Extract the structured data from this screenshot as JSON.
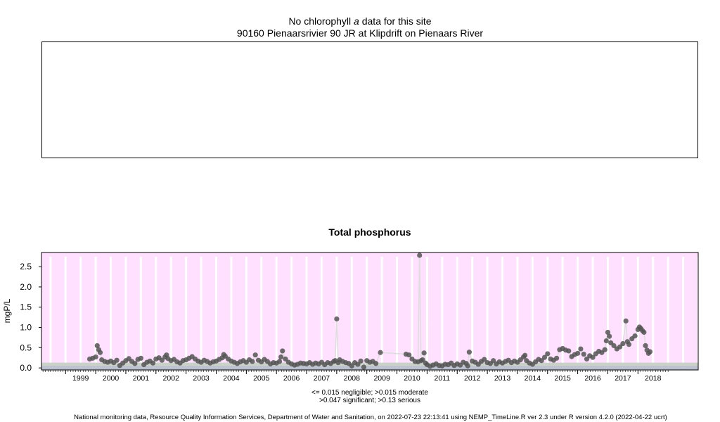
{
  "header": {
    "no_data_prefix": "No chlorophyll",
    "no_data_symbol": "a",
    "no_data_suffix": "data for this site",
    "site_name": "90160 Pienaarsrivier 90 JR at Klipdrift on Pienaars River"
  },
  "chart_data": {
    "type": "scatter",
    "title": "Total phosphorus",
    "xlabel": "",
    "ylabel": "mgP/L",
    "x_ticks": [
      "1999",
      "2000",
      "2001",
      "2002",
      "2003",
      "2004",
      "2005",
      "2006",
      "2007",
      "2008",
      "2009",
      "2010",
      "2011",
      "2012",
      "2013",
      "2014",
      "2015",
      "2016",
      "2017",
      "2018"
    ],
    "xlim": [
      1998.2,
      2020.0
    ],
    "ylim": [
      -0.05,
      2.85
    ],
    "y_ticks": [
      "0.0",
      "0.5",
      "1.0",
      "1.5",
      "2.0",
      "2.5"
    ],
    "grid": "vertical",
    "background_colors": {
      "serious": "#ffe0ff",
      "significant": "#c9d1c9",
      "moderate": "#b9bfcc",
      "negligible": "#999999",
      "grid": "#ffffff",
      "points": "#555555",
      "line": "#dddddd"
    },
    "thresholds": {
      "negligible": 0.015,
      "moderate": 0.015,
      "significant": 0.047,
      "serious": 0.13
    },
    "series": [
      {
        "points": [
          [
            1999.8,
            0.22
          ],
          [
            1999.9,
            0.24
          ],
          [
            2000.0,
            0.27
          ],
          [
            2000.05,
            0.55
          ],
          [
            2000.1,
            0.45
          ],
          [
            2000.15,
            0.38
          ],
          [
            2000.2,
            0.2
          ],
          [
            2000.3,
            0.16
          ],
          [
            2000.4,
            0.14
          ],
          [
            2000.5,
            0.17
          ],
          [
            2000.6,
            0.13
          ],
          [
            2000.7,
            0.19
          ],
          [
            2000.8,
            0.06
          ],
          [
            2000.9,
            0.12
          ],
          [
            2001.0,
            0.18
          ],
          [
            2001.1,
            0.23
          ],
          [
            2001.2,
            0.16
          ],
          [
            2001.3,
            0.11
          ],
          [
            2001.4,
            0.21
          ],
          [
            2001.5,
            0.24
          ],
          [
            2001.6,
            0.08
          ],
          [
            2001.7,
            0.14
          ],
          [
            2001.8,
            0.17
          ],
          [
            2001.9,
            0.12
          ],
          [
            2002.0,
            0.22
          ],
          [
            2002.1,
            0.25
          ],
          [
            2002.2,
            0.19
          ],
          [
            2002.3,
            0.27
          ],
          [
            2002.35,
            0.32
          ],
          [
            2002.4,
            0.23
          ],
          [
            2002.5,
            0.18
          ],
          [
            2002.6,
            0.21
          ],
          [
            2002.7,
            0.15
          ],
          [
            2002.8,
            0.12
          ],
          [
            2002.9,
            0.18
          ],
          [
            2003.0,
            0.2
          ],
          [
            2003.1,
            0.24
          ],
          [
            2003.2,
            0.28
          ],
          [
            2003.3,
            0.22
          ],
          [
            2003.4,
            0.17
          ],
          [
            2003.5,
            0.14
          ],
          [
            2003.6,
            0.19
          ],
          [
            2003.7,
            0.16
          ],
          [
            2003.8,
            0.12
          ],
          [
            2003.9,
            0.15
          ],
          [
            2004.0,
            0.17
          ],
          [
            2004.1,
            0.21
          ],
          [
            2004.2,
            0.25
          ],
          [
            2004.25,
            0.33
          ],
          [
            2004.3,
            0.29
          ],
          [
            2004.4,
            0.22
          ],
          [
            2004.5,
            0.17
          ],
          [
            2004.6,
            0.14
          ],
          [
            2004.7,
            0.11
          ],
          [
            2004.8,
            0.15
          ],
          [
            2004.9,
            0.18
          ],
          [
            2005.0,
            0.14
          ],
          [
            2005.1,
            0.2
          ],
          [
            2005.2,
            0.16
          ],
          [
            2005.3,
            0.32
          ],
          [
            2005.4,
            0.19
          ],
          [
            2005.5,
            0.15
          ],
          [
            2005.6,
            0.21
          ],
          [
            2005.7,
            0.16
          ],
          [
            2005.8,
            0.1
          ],
          [
            2005.9,
            0.13
          ],
          [
            2006.0,
            0.12
          ],
          [
            2006.1,
            0.16
          ],
          [
            2006.15,
            0.27
          ],
          [
            2006.2,
            0.42
          ],
          [
            2006.3,
            0.22
          ],
          [
            2006.4,
            0.14
          ],
          [
            2006.5,
            0.1
          ],
          [
            2006.6,
            0.07
          ],
          [
            2006.7,
            0.09
          ],
          [
            2006.8,
            0.12
          ],
          [
            2006.9,
            0.11
          ],
          [
            2007.0,
            0.1
          ],
          [
            2007.1,
            0.13
          ],
          [
            2007.2,
            0.09
          ],
          [
            2007.3,
            0.12
          ],
          [
            2007.4,
            0.1
          ],
          [
            2007.5,
            0.14
          ],
          [
            2007.6,
            0.08
          ],
          [
            2007.7,
            0.13
          ],
          [
            2007.8,
            0.11
          ],
          [
            2007.9,
            0.16
          ],
          [
            2007.95,
            0.18
          ],
          [
            2008.0,
            1.21
          ],
          [
            2008.05,
            0.13
          ],
          [
            2008.1,
            0.2
          ],
          [
            2008.2,
            0.16
          ],
          [
            2008.3,
            0.13
          ],
          [
            2008.4,
            0.11
          ],
          [
            2008.5,
            0.05
          ],
          [
            2008.6,
            0.13
          ],
          [
            2008.7,
            0.09
          ],
          [
            2008.8,
            0.17
          ],
          [
            2008.9,
            0.02
          ],
          [
            2009.0,
            0.18
          ],
          [
            2009.1,
            0.14
          ],
          [
            2009.2,
            0.16
          ],
          [
            2009.3,
            0.11
          ],
          [
            2009.45,
            0.38
          ],
          [
            2010.3,
            0.34
          ],
          [
            2010.4,
            0.32
          ],
          [
            2010.5,
            0.22
          ],
          [
            2010.6,
            0.16
          ],
          [
            2010.7,
            0.15
          ],
          [
            2010.75,
            2.78
          ],
          [
            2010.8,
            0.18
          ],
          [
            2010.85,
            0.2
          ],
          [
            2010.9,
            0.37
          ],
          [
            2010.95,
            0.12
          ],
          [
            2011.0,
            0.08
          ],
          [
            2011.1,
            0.04
          ],
          [
            2011.2,
            0.07
          ],
          [
            2011.3,
            0.1
          ],
          [
            2011.4,
            0.06
          ],
          [
            2011.5,
            0.05
          ],
          [
            2011.6,
            0.09
          ],
          [
            2011.7,
            0.08
          ],
          [
            2011.8,
            0.12
          ],
          [
            2011.9,
            0.06
          ],
          [
            2012.0,
            0.1
          ],
          [
            2012.1,
            0.07
          ],
          [
            2012.2,
            0.14
          ],
          [
            2012.3,
            0.11
          ],
          [
            2012.35,
            0.05
          ],
          [
            2012.4,
            0.39
          ],
          [
            2012.5,
            0.17
          ],
          [
            2012.6,
            0.14
          ],
          [
            2012.7,
            0.09
          ],
          [
            2012.8,
            0.16
          ],
          [
            2012.9,
            0.21
          ],
          [
            2013.0,
            0.13
          ],
          [
            2013.1,
            0.11
          ],
          [
            2013.2,
            0.18
          ],
          [
            2013.3,
            0.1
          ],
          [
            2013.4,
            0.15
          ],
          [
            2013.5,
            0.12
          ],
          [
            2013.6,
            0.16
          ],
          [
            2013.7,
            0.19
          ],
          [
            2013.8,
            0.13
          ],
          [
            2013.9,
            0.17
          ],
          [
            2014.0,
            0.14
          ],
          [
            2014.1,
            0.2
          ],
          [
            2014.2,
            0.27
          ],
          [
            2014.25,
            0.31
          ],
          [
            2014.3,
            0.18
          ],
          [
            2014.4,
            0.12
          ],
          [
            2014.5,
            0.09
          ],
          [
            2014.6,
            0.15
          ],
          [
            2014.7,
            0.21
          ],
          [
            2014.8,
            0.18
          ],
          [
            2014.9,
            0.26
          ],
          [
            2015.0,
            0.35
          ],
          [
            2015.1,
            0.22
          ],
          [
            2015.2,
            0.19
          ],
          [
            2015.3,
            0.24
          ],
          [
            2015.4,
            0.45
          ],
          [
            2015.5,
            0.48
          ],
          [
            2015.6,
            0.44
          ],
          [
            2015.7,
            0.42
          ],
          [
            2015.8,
            0.28
          ],
          [
            2015.9,
            0.33
          ],
          [
            2016.0,
            0.36
          ],
          [
            2016.1,
            0.47
          ],
          [
            2016.2,
            0.34
          ],
          [
            2016.3,
            0.22
          ],
          [
            2016.4,
            0.3
          ],
          [
            2016.5,
            0.26
          ],
          [
            2016.6,
            0.35
          ],
          [
            2016.7,
            0.41
          ],
          [
            2016.8,
            0.38
          ],
          [
            2016.9,
            0.45
          ],
          [
            2016.95,
            0.67
          ],
          [
            2017.0,
            0.88
          ],
          [
            2017.05,
            0.78
          ],
          [
            2017.1,
            0.62
          ],
          [
            2017.2,
            0.55
          ],
          [
            2017.3,
            0.47
          ],
          [
            2017.4,
            0.52
          ],
          [
            2017.5,
            0.6
          ],
          [
            2017.6,
            1.16
          ],
          [
            2017.65,
            0.65
          ],
          [
            2017.7,
            0.58
          ],
          [
            2017.8,
            0.72
          ],
          [
            2017.9,
            0.79
          ],
          [
            2018.0,
            0.95
          ],
          [
            2018.05,
            1.01
          ],
          [
            2018.1,
            0.97
          ],
          [
            2018.15,
            0.92
          ],
          [
            2018.2,
            0.88
          ],
          [
            2018.25,
            0.55
          ],
          [
            2018.3,
            0.44
          ],
          [
            2018.35,
            0.36
          ],
          [
            2018.4,
            0.4
          ]
        ]
      }
    ]
  },
  "legend": {
    "line1": "<= 0.015 negligible; >0.015 moderate",
    "line2": ">0.047 significant; >0.13 serious"
  },
  "footer": "National monitoring data, Resource Quality Information Services, Department of Water and Sanitation, on 2022-07-23 22:13:41 using NEMP_TimeLine.R ver 2.3 under R version 4.2.0 (2022-04-22 ucrt)"
}
